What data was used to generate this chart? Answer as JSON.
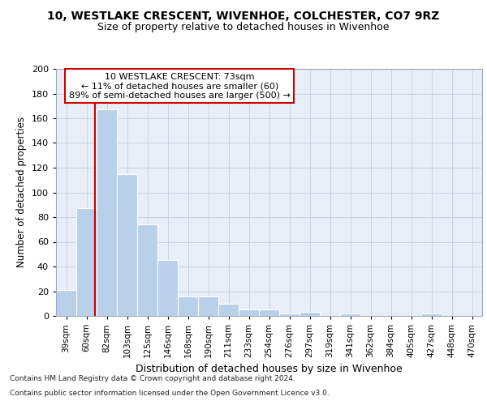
{
  "title1": "10, WESTLAKE CRESCENT, WIVENHOE, COLCHESTER, CO7 9RZ",
  "title2": "Size of property relative to detached houses in Wivenhoe",
  "xlabel": "Distribution of detached houses by size in Wivenhoe",
  "ylabel": "Number of detached properties",
  "categories": [
    "39sqm",
    "60sqm",
    "82sqm",
    "103sqm",
    "125sqm",
    "146sqm",
    "168sqm",
    "190sqm",
    "211sqm",
    "233sqm",
    "254sqm",
    "276sqm",
    "297sqm",
    "319sqm",
    "341sqm",
    "362sqm",
    "384sqm",
    "405sqm",
    "427sqm",
    "448sqm",
    "470sqm"
  ],
  "values": [
    21,
    87,
    167,
    115,
    74,
    45,
    16,
    16,
    10,
    5,
    5,
    2,
    3,
    0,
    2,
    0,
    0,
    0,
    2,
    0,
    0
  ],
  "bar_color": "#b8d0ea",
  "bar_edge_color": "#b8d0ea",
  "grid_color": "#c8d4e4",
  "background_color": "#e8eef8",
  "vline_color": "#cc0000",
  "vline_x": 1.43,
  "annotation_line1": "10 WESTLAKE CRESCENT: 73sqm",
  "annotation_line2": "← 11% of detached houses are smaller (60)",
  "annotation_line3": "89% of semi-detached houses are larger (500) →",
  "annotation_box_facecolor": "#ffffff",
  "annotation_box_edgecolor": "#cc0000",
  "footnote1": "Contains HM Land Registry data © Crown copyright and database right 2024.",
  "footnote2": "Contains public sector information licensed under the Open Government Licence v3.0.",
  "ylim": [
    0,
    200
  ],
  "yticks": [
    0,
    20,
    40,
    60,
    80,
    100,
    120,
    140,
    160,
    180,
    200
  ]
}
